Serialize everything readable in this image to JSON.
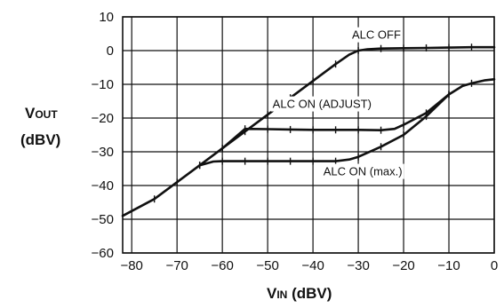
{
  "chart_data": {
    "type": "line",
    "xlabel": "VIN (dBV)",
    "ylabel": "VOUT (dBV)",
    "xlim": [
      -82,
      0
    ],
    "ylim": [
      -60,
      10
    ],
    "xticks": [
      -80,
      -70,
      -60,
      -50,
      -40,
      -30,
      -20,
      -10,
      0
    ],
    "yticks": [
      10,
      0,
      -10,
      -20,
      -30,
      -40,
      -50,
      -60
    ],
    "xtick_labels": [
      "−80",
      "−70",
      "−60",
      "−50",
      "−40",
      "−30",
      "−20",
      "−10",
      "0"
    ],
    "ytick_labels": [
      "10",
      "0",
      "−10",
      "−20",
      "−30",
      "−40",
      "−50",
      "−60"
    ],
    "grid": true,
    "axis_titles": {
      "y_main": "V",
      "y_sub": "OUT",
      "y_unit": "(dBV)",
      "x_main": "V",
      "x_sub": "IN",
      "x_unit": " (dBV)"
    },
    "series": [
      {
        "name": "ALC OFF",
        "x": [
          -82,
          -75,
          -70,
          -65,
          -60,
          -55,
          -50,
          -45,
          -40,
          -35,
          -32,
          -30,
          -28,
          -25,
          -20,
          -15,
          -10,
          -5,
          0
        ],
        "y": [
          -49,
          -44,
          -39,
          -34,
          -29,
          -24,
          -19,
          -14,
          -9,
          -4,
          -1.2,
          0,
          0.4,
          0.6,
          0.7,
          0.8,
          0.9,
          1.0,
          1.0
        ]
      },
      {
        "name": "ALC ON (ADJUST)",
        "x": [
          -60,
          -55,
          -50,
          -45,
          -40,
          -35,
          -30,
          -25,
          -22,
          -20,
          -15,
          -10,
          -7,
          -5,
          -2,
          0
        ],
        "y": [
          -29,
          -23.2,
          -23.3,
          -23.4,
          -23.5,
          -23.5,
          -23.5,
          -23.6,
          -23.2,
          -22,
          -18.5,
          -13,
          -10.5,
          -9.7,
          -8.8,
          -8.5
        ]
      },
      {
        "name": "ALC ON (max.)",
        "x": [
          -65,
          -62,
          -60,
          -55,
          -50,
          -45,
          -40,
          -35,
          -32,
          -30,
          -25,
          -20,
          -15,
          -10
        ],
        "y": [
          -34,
          -32.9,
          -32.8,
          -32.8,
          -32.8,
          -32.8,
          -32.8,
          -32.8,
          -32.3,
          -31.5,
          -28.5,
          -25,
          -19.5,
          -13
        ]
      }
    ],
    "annotations": [
      {
        "text": "ALC OFF",
        "x": -26,
        "y": 3.5
      },
      {
        "text": "ALC ON (ADJUST)",
        "x": -38,
        "y": -17
      },
      {
        "text": "ALC ON (max.)",
        "x": -29,
        "y": -37
      }
    ]
  }
}
